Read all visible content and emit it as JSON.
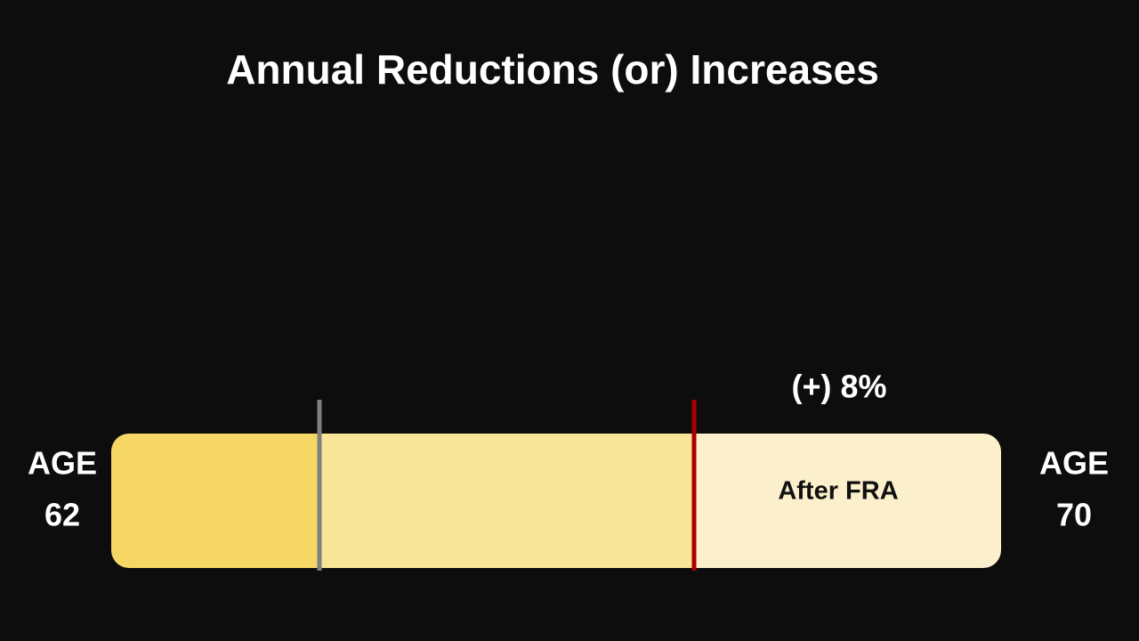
{
  "title": "Annual Reductions (or) Increases",
  "left_label": {
    "line1": "AGE",
    "line2": "62"
  },
  "right_label": {
    "line1": "AGE",
    "line2": "70"
  },
  "annotation": "(+) 8%",
  "segment_label": "After FRA"
}
